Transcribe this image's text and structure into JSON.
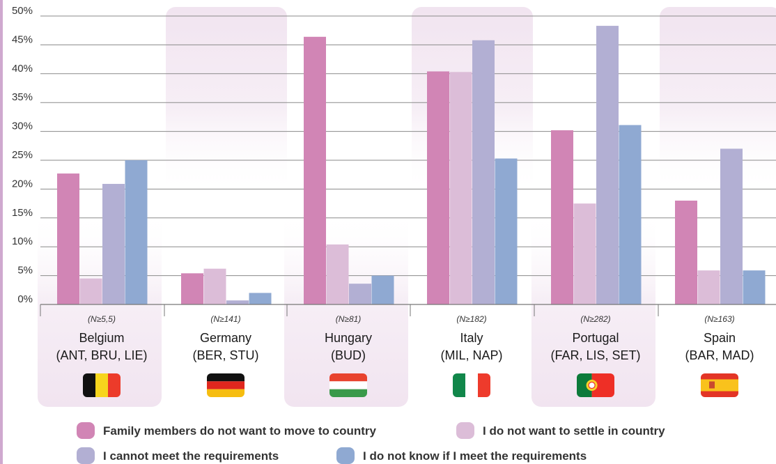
{
  "colors": {
    "family": "#d185b5",
    "settle": "#dcbdd8",
    "requirements": "#b2afd3",
    "dontknow": "#8fa9d2",
    "highlight": "#f1e4f0",
    "grid": "#8a8a8a"
  },
  "chart_data": {
    "type": "bar",
    "ylim": [
      0,
      50
    ],
    "y_ticks": [
      0,
      5,
      10,
      15,
      20,
      25,
      30,
      35,
      40,
      45,
      50
    ],
    "y_tick_labels": [
      "0%",
      "5%",
      "10%",
      "15%",
      "20%",
      "25%",
      "30%",
      "35%",
      "40%",
      "45%",
      "50%"
    ],
    "categories": [
      "Belgium",
      "Germany",
      "Hungary",
      "Italy",
      "Portugal",
      "Spain"
    ],
    "category_regions": [
      "(ANT, BRU, LIE)",
      "(BER, STU)",
      "(BUD)",
      "(MIL, NAP)",
      "(FAR, LIS, SET)",
      "(BAR, MAD)"
    ],
    "category_n": [
      "(N≥5,5)",
      "(N≥141)",
      "(N≥81)",
      "(N≥182)",
      "(N≥282)",
      "(N≥163)"
    ],
    "flags": [
      "belgium-flag",
      "germany-flag",
      "hungary-flag",
      "italy-flag",
      "portugal-flag",
      "spain-flag"
    ],
    "series": [
      {
        "name": "Family members do not want to move to country",
        "color_key": "family",
        "values": [
          22.7,
          5.4,
          46.4,
          40.4,
          30.2,
          18.0
        ]
      },
      {
        "name": "I do not want to settle in country",
        "color_key": "settle",
        "values": [
          4.5,
          6.2,
          10.4,
          40.3,
          17.5,
          5.9
        ]
      },
      {
        "name": "I cannot meet the requirements",
        "color_key": "requirements",
        "values": [
          20.9,
          0.7,
          3.6,
          45.8,
          48.3,
          27.0
        ]
      },
      {
        "name": "I do not know if I meet the requirements",
        "color_key": "dontknow",
        "values": [
          25.0,
          2.0,
          5.0,
          25.3,
          31.1,
          5.9
        ]
      }
    ],
    "legend_position": "bottom",
    "grid": true
  }
}
